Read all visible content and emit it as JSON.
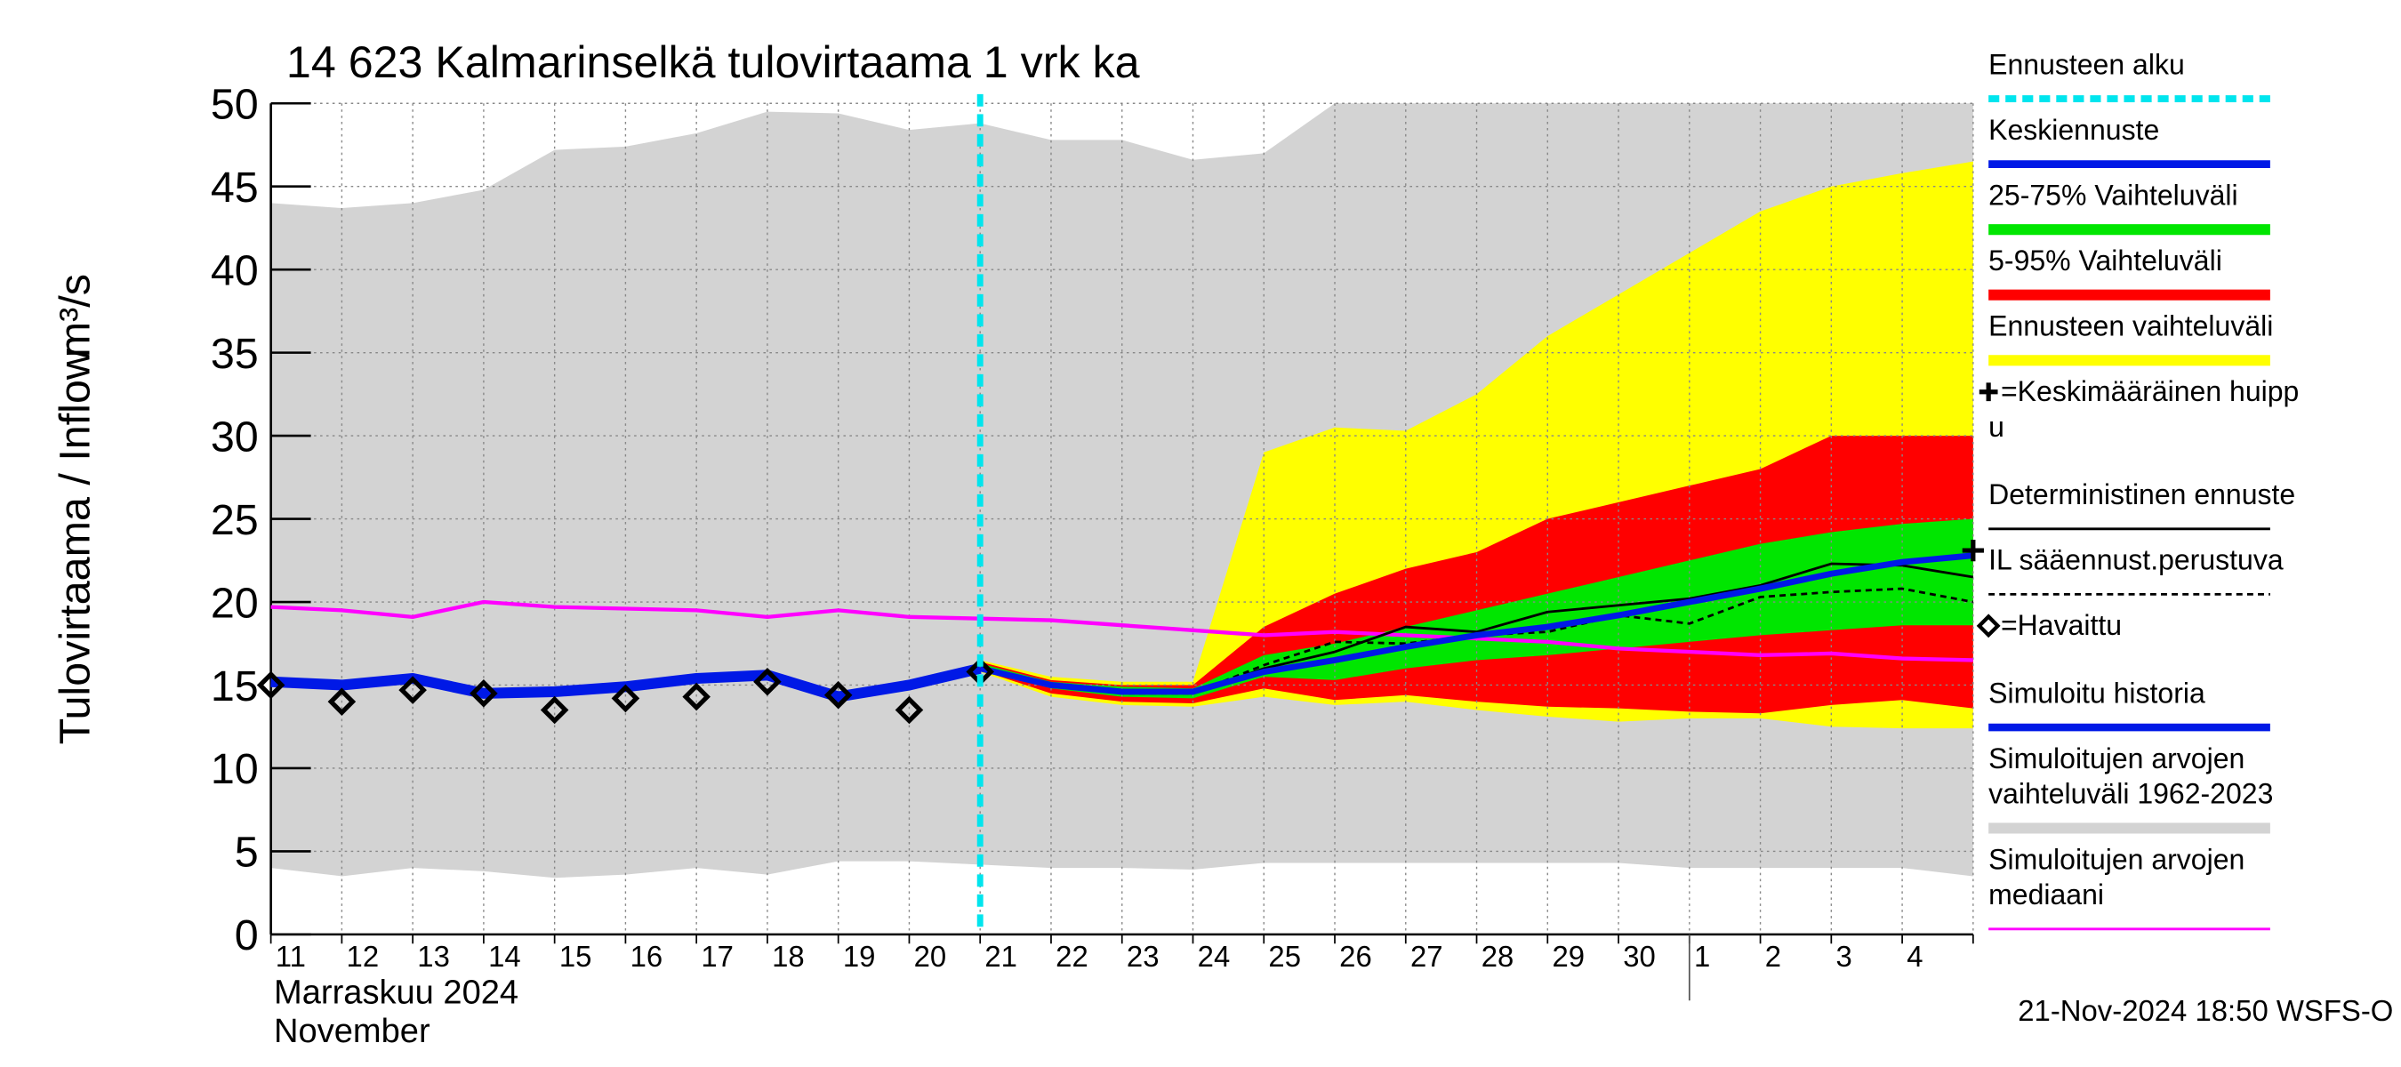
{
  "chart_data": {
    "type": "line",
    "title": "14 623 Kalmarinselkä tulovirtaama 1 vrk ka",
    "y_label": "Tulovirtaama / Inflow",
    "y_unit": "m³/s",
    "month_labels": [
      "Marraskuu 2024",
      "November"
    ],
    "footer": "21-Nov-2024 18:50 WSFS-O",
    "categories": [
      "11",
      "12",
      "13",
      "14",
      "15",
      "16",
      "17",
      "18",
      "19",
      "20",
      "21",
      "22",
      "23",
      "24",
      "25",
      "26",
      "27",
      "28",
      "29",
      "30",
      "1",
      "2",
      "3",
      "4",
      null
    ],
    "ylim": [
      0,
      50
    ],
    "yticks": [
      0,
      5,
      10,
      15,
      20,
      25,
      30,
      35,
      40,
      45,
      50
    ],
    "grid": true,
    "series": [
      {
        "name": [
          "Ennusteen alku"
        ],
        "color": "#00e5ee",
        "kind": "vline",
        "style": "dashed",
        "x": 10
      },
      {
        "name": [
          "Keskiennuste"
        ],
        "color": "#0019e6",
        "kind": "line",
        "width": 4,
        "values": [
          null,
          null,
          null,
          null,
          null,
          null,
          null,
          null,
          null,
          null,
          16,
          15,
          14.6,
          14.6,
          15.8,
          16.5,
          17.3,
          18,
          18.5,
          19.2,
          20,
          20.8,
          21.7,
          22.4,
          22.8
        ]
      },
      {
        "name": [
          "25-75% Vaihteluväli"
        ],
        "color": "#00e600",
        "kind": "band",
        "upper": [
          null,
          null,
          null,
          null,
          null,
          null,
          null,
          null,
          null,
          null,
          16.3,
          15.2,
          14.9,
          14.8,
          16.8,
          17.5,
          18.5,
          19.5,
          20.5,
          21.5,
          22.5,
          23.5,
          24.2,
          24.7,
          25
        ],
        "lower": [
          null,
          null,
          null,
          null,
          null,
          null,
          null,
          null,
          null,
          null,
          16,
          14.8,
          14.3,
          14.2,
          15.5,
          15.3,
          16,
          16.5,
          16.8,
          17.2,
          17.6,
          18,
          18.3,
          18.6,
          18.6
        ]
      },
      {
        "name": [
          "5-95% Vaihteluväli"
        ],
        "color": "#ff0000",
        "kind": "band",
        "upper": [
          null,
          null,
          null,
          null,
          null,
          null,
          null,
          null,
          null,
          null,
          16.4,
          15.3,
          15,
          15,
          18.5,
          20.5,
          22,
          23,
          25,
          26,
          27,
          28,
          30,
          30,
          30
        ],
        "lower": [
          null,
          null,
          null,
          null,
          null,
          null,
          null,
          null,
          null,
          null,
          15.9,
          14.5,
          14,
          13.9,
          14.8,
          14.1,
          14.4,
          14,
          13.7,
          13.6,
          13.4,
          13.3,
          13.8,
          14.1,
          13.6
        ]
      },
      {
        "name": [
          "Ennusteen vaihteluväli"
        ],
        "color": "#ffff00",
        "kind": "band",
        "upper": [
          null,
          null,
          null,
          null,
          null,
          null,
          null,
          null,
          null,
          null,
          16.5,
          15.5,
          15.2,
          15.2,
          29,
          30.5,
          30.3,
          32.5,
          36,
          38.5,
          41,
          43.5,
          45,
          45.8,
          46.5
        ],
        "lower": [
          null,
          null,
          null,
          null,
          null,
          null,
          null,
          null,
          null,
          null,
          15.8,
          14.3,
          13.8,
          13.7,
          14.3,
          13.8,
          14,
          13.5,
          13.1,
          12.8,
          13,
          13,
          12.5,
          12.4,
          12.4
        ]
      },
      {
        "name": [
          "=Keskimääräinen huipp",
          "u"
        ],
        "color": "#000000",
        "kind": "peak",
        "value": 23.1
      },
      {
        "name": [
          "Deterministinen ennuste"
        ],
        "color": "#000000",
        "kind": "line",
        "width": 1.6,
        "values": [
          null,
          null,
          null,
          null,
          null,
          null,
          null,
          null,
          null,
          null,
          16,
          15.1,
          14.7,
          14.5,
          16,
          17,
          18.5,
          18.2,
          19.4,
          19.8,
          20.2,
          21,
          22.3,
          22.2,
          21.5
        ]
      },
      {
        "name": [
          "IL sääennust.perustuva"
        ],
        "color": "#000000",
        "kind": "line",
        "width": 1.6,
        "style": "dashed",
        "values": [
          null,
          null,
          null,
          null,
          null,
          null,
          null,
          null,
          null,
          null,
          16,
          15,
          14.5,
          14.5,
          16.2,
          17.6,
          17.5,
          18,
          18.2,
          19.2,
          18.7,
          20.3,
          20.6,
          20.8,
          20
        ]
      },
      {
        "name": [
          "=Havaittu"
        ],
        "color": "#000000",
        "kind": "marker",
        "values": [
          15,
          14,
          14.7,
          14.5,
          13.5,
          14.2,
          14.3,
          15.2,
          14.4,
          13.5,
          15.8,
          null,
          null,
          null,
          null,
          null,
          null,
          null,
          null,
          null,
          null,
          null,
          null,
          null,
          null
        ]
      },
      {
        "name": [
          "Simuloitu historia"
        ],
        "color": "#0019e6",
        "kind": "line",
        "width": 7,
        "values": [
          15.2,
          15,
          15.4,
          14.5,
          14.6,
          14.9,
          15.4,
          15.6,
          14.3,
          15,
          16,
          null,
          null,
          null,
          null,
          null,
          null,
          null,
          null,
          null,
          null,
          null,
          null,
          null,
          null
        ]
      },
      {
        "name": [
          "Simuloitujen arvojen",
          "vaihteluväli 1962-2023"
        ],
        "color": "#d3d3d3",
        "kind": "band",
        "upper": [
          44,
          43.7,
          44,
          44.8,
          47.2,
          47.4,
          48.2,
          49.5,
          49.4,
          48.4,
          48.8,
          47.8,
          47.8,
          46.6,
          47,
          50,
          50,
          50,
          50,
          50,
          50,
          50,
          50,
          50,
          50
        ],
        "lower": [
          4,
          3.5,
          4,
          3.8,
          3.4,
          3.6,
          4,
          3.6,
          4.4,
          4.4,
          4.2,
          4,
          4,
          3.9,
          4.3,
          4.3,
          4.3,
          4.3,
          4.3,
          4.3,
          4,
          4,
          4,
          4,
          3.5
        ]
      },
      {
        "name": [
          "Simuloitujen arvojen",
          "mediaani"
        ],
        "color": "#ff00ff",
        "kind": "line",
        "width": 2.5,
        "values": [
          19.7,
          19.5,
          19.1,
          20,
          19.7,
          19.6,
          19.5,
          19.1,
          19.5,
          19.1,
          19,
          18.9,
          18.6,
          18.3,
          18,
          18.2,
          18,
          17.8,
          17.6,
          17.2,
          17,
          16.8,
          16.9,
          16.6,
          16.5
        ]
      }
    ]
  }
}
